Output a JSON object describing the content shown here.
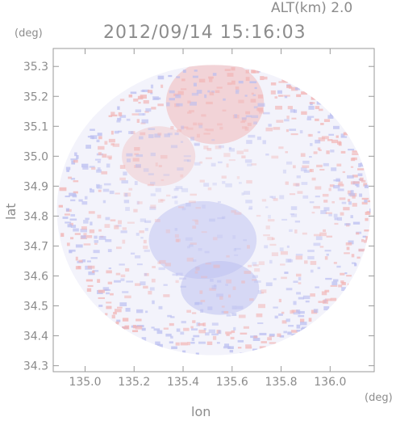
{
  "header": {
    "alt_label": "ALT(km) 2.0",
    "timestamp": "2012/09/14 15:16:03"
  },
  "chart_data": {
    "type": "heatmap",
    "title": "2012/09/14 15:16:03",
    "annotation": "ALT(km) 2.0",
    "xlabel": "lon",
    "ylabel": "lat",
    "x_unit": "(deg)",
    "y_unit": "(deg)",
    "xlim": [
      134.87,
      136.18
    ],
    "ylim": [
      34.28,
      35.36
    ],
    "xticks": [
      135.0,
      135.2,
      135.4,
      135.6,
      135.8,
      136.0
    ],
    "xtick_labels": [
      "135.0",
      "135.2",
      "135.4",
      "135.6",
      "135.8",
      "136.0"
    ],
    "yticks": [
      34.3,
      34.4,
      34.5,
      34.6,
      34.7,
      34.8,
      34.9,
      35.0,
      35.1,
      35.2,
      35.3
    ],
    "ytick_labels": [
      "34.3",
      "34.4",
      "34.5",
      "34.6",
      "34.7",
      "34.8",
      "34.9",
      "35.0",
      "35.1",
      "35.2",
      "35.3"
    ],
    "coverage": {
      "center_lon": 135.525,
      "center_lat": 34.82,
      "radius_lon": 0.64,
      "radius_lat": 0.485
    },
    "regions": [
      {
        "name": "positive-north",
        "lon": 135.53,
        "lat": 35.18,
        "rlon": 0.2,
        "rlat": 0.14,
        "value": 0.5
      },
      {
        "name": "positive-northwest",
        "lon": 135.3,
        "lat": 35.0,
        "rlon": 0.15,
        "rlat": 0.1,
        "value": 0.35
      },
      {
        "name": "negative-center",
        "lon": 135.48,
        "lat": 34.72,
        "rlon": 0.22,
        "rlat": 0.13,
        "value": -0.45
      },
      {
        "name": "negative-south",
        "lon": 135.55,
        "lat": 34.56,
        "rlon": 0.16,
        "rlat": 0.09,
        "value": -0.5
      }
    ],
    "colors": {
      "positive": "#f2b4b4",
      "negative": "#b9bdf0",
      "neutral": "#f3f3fb",
      "text": "#8c8c8c",
      "axis": "#9a9a9a"
    }
  }
}
